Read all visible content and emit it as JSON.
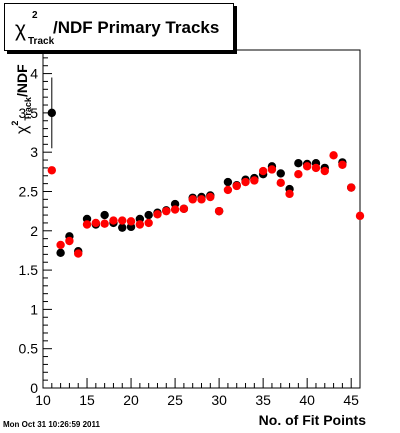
{
  "title": {
    "chi": "χ",
    "superscript": "2",
    "subscript": "Track",
    "rest": "/NDF Primary Tracks"
  },
  "ylabel": {
    "chi": "χ",
    "superscript": "2",
    "subscript": "Track",
    "rest": "/NDF"
  },
  "timestamp": "Mon Oct 31 10:26:59 2011",
  "chart_data": {
    "type": "scatter",
    "xlabel": "No. of Fit Points",
    "xlim": [
      10,
      46
    ],
    "ylim": [
      0,
      4.3
    ],
    "x_ticks": [
      10,
      15,
      20,
      25,
      30,
      35,
      40,
      45
    ],
    "y_ticks": [
      0,
      0.5,
      1,
      1.5,
      2,
      2.5,
      3,
      3.5,
      4
    ],
    "grid": false,
    "series": [
      {
        "color": "#000000",
        "points": [
          {
            "x": 11,
            "y": 3.5,
            "yerr": 0.45
          },
          {
            "x": 12,
            "y": 1.72,
            "yerr": 0.03
          },
          {
            "x": 13,
            "y": 1.93,
            "yerr": 0.03
          },
          {
            "x": 14,
            "y": 1.74,
            "yerr": 0.03
          },
          {
            "x": 15,
            "y": 2.15,
            "yerr": 0.02
          },
          {
            "x": 16,
            "y": 2.08,
            "yerr": 0.02
          },
          {
            "x": 17,
            "y": 2.2,
            "yerr": 0.02
          },
          {
            "x": 18,
            "y": 2.1,
            "yerr": 0.02
          },
          {
            "x": 19,
            "y": 2.04,
            "yerr": 0.02
          },
          {
            "x": 20,
            "y": 2.05,
            "yerr": 0.02
          },
          {
            "x": 21,
            "y": 2.15,
            "yerr": 0.02
          },
          {
            "x": 22,
            "y": 2.2,
            "yerr": 0.02
          },
          {
            "x": 23,
            "y": 2.23,
            "yerr": 0.02
          },
          {
            "x": 24,
            "y": 2.26,
            "yerr": 0.02
          },
          {
            "x": 25,
            "y": 2.34,
            "yerr": 0.02
          },
          {
            "x": 26,
            "y": 2.28,
            "yerr": 0.02
          },
          {
            "x": 27,
            "y": 2.42,
            "yerr": 0.02
          },
          {
            "x": 28,
            "y": 2.43,
            "yerr": 0.02
          },
          {
            "x": 29,
            "y": 2.45,
            "yerr": 0.02
          },
          {
            "x": 30,
            "y": 2.25,
            "yerr": 0.02
          },
          {
            "x": 31,
            "y": 2.62,
            "yerr": 0.02
          },
          {
            "x": 32,
            "y": 2.58,
            "yerr": 0.02
          },
          {
            "x": 33,
            "y": 2.65,
            "yerr": 0.02
          },
          {
            "x": 34,
            "y": 2.67,
            "yerr": 0.02
          },
          {
            "x": 35,
            "y": 2.72,
            "yerr": 0.02
          },
          {
            "x": 36,
            "y": 2.82,
            "yerr": 0.02
          },
          {
            "x": 37,
            "y": 2.73,
            "yerr": 0.02
          },
          {
            "x": 38,
            "y": 2.53,
            "yerr": 0.02
          },
          {
            "x": 39,
            "y": 2.86,
            "yerr": 0.02
          },
          {
            "x": 40,
            "y": 2.85,
            "yerr": 0.02
          },
          {
            "x": 41,
            "y": 2.86,
            "yerr": 0.02
          },
          {
            "x": 42,
            "y": 2.8,
            "yerr": 0.02
          },
          {
            "x": 44,
            "y": 2.87,
            "yerr": 0.02
          },
          {
            "x": 45,
            "y": 2.55,
            "yerr": 0.02
          }
        ]
      },
      {
        "color": "#ff0000",
        "points": [
          {
            "x": 11,
            "y": 2.77
          },
          {
            "x": 12,
            "y": 1.82
          },
          {
            "x": 13,
            "y": 1.87
          },
          {
            "x": 14,
            "y": 1.71
          },
          {
            "x": 15,
            "y": 2.08
          },
          {
            "x": 16,
            "y": 2.1
          },
          {
            "x": 17,
            "y": 2.09
          },
          {
            "x": 18,
            "y": 2.13
          },
          {
            "x": 19,
            "y": 2.13
          },
          {
            "x": 20,
            "y": 2.12
          },
          {
            "x": 21,
            "y": 2.08
          },
          {
            "x": 22,
            "y": 2.1
          },
          {
            "x": 23,
            "y": 2.21
          },
          {
            "x": 24,
            "y": 2.25
          },
          {
            "x": 25,
            "y": 2.27
          },
          {
            "x": 26,
            "y": 2.28
          },
          {
            "x": 27,
            "y": 2.4
          },
          {
            "x": 28,
            "y": 2.4
          },
          {
            "x": 29,
            "y": 2.43
          },
          {
            "x": 30,
            "y": 2.25
          },
          {
            "x": 31,
            "y": 2.52
          },
          {
            "x": 32,
            "y": 2.57
          },
          {
            "x": 33,
            "y": 2.62
          },
          {
            "x": 34,
            "y": 2.64
          },
          {
            "x": 35,
            "y": 2.76
          },
          {
            "x": 36,
            "y": 2.78
          },
          {
            "x": 37,
            "y": 2.61
          },
          {
            "x": 38,
            "y": 2.47
          },
          {
            "x": 39,
            "y": 2.72
          },
          {
            "x": 40,
            "y": 2.82
          },
          {
            "x": 41,
            "y": 2.8
          },
          {
            "x": 42,
            "y": 2.76
          },
          {
            "x": 43,
            "y": 2.96
          },
          {
            "x": 44,
            "y": 2.84
          },
          {
            "x": 45,
            "y": 2.55
          },
          {
            "x": 46,
            "y": 2.19
          }
        ]
      }
    ]
  }
}
